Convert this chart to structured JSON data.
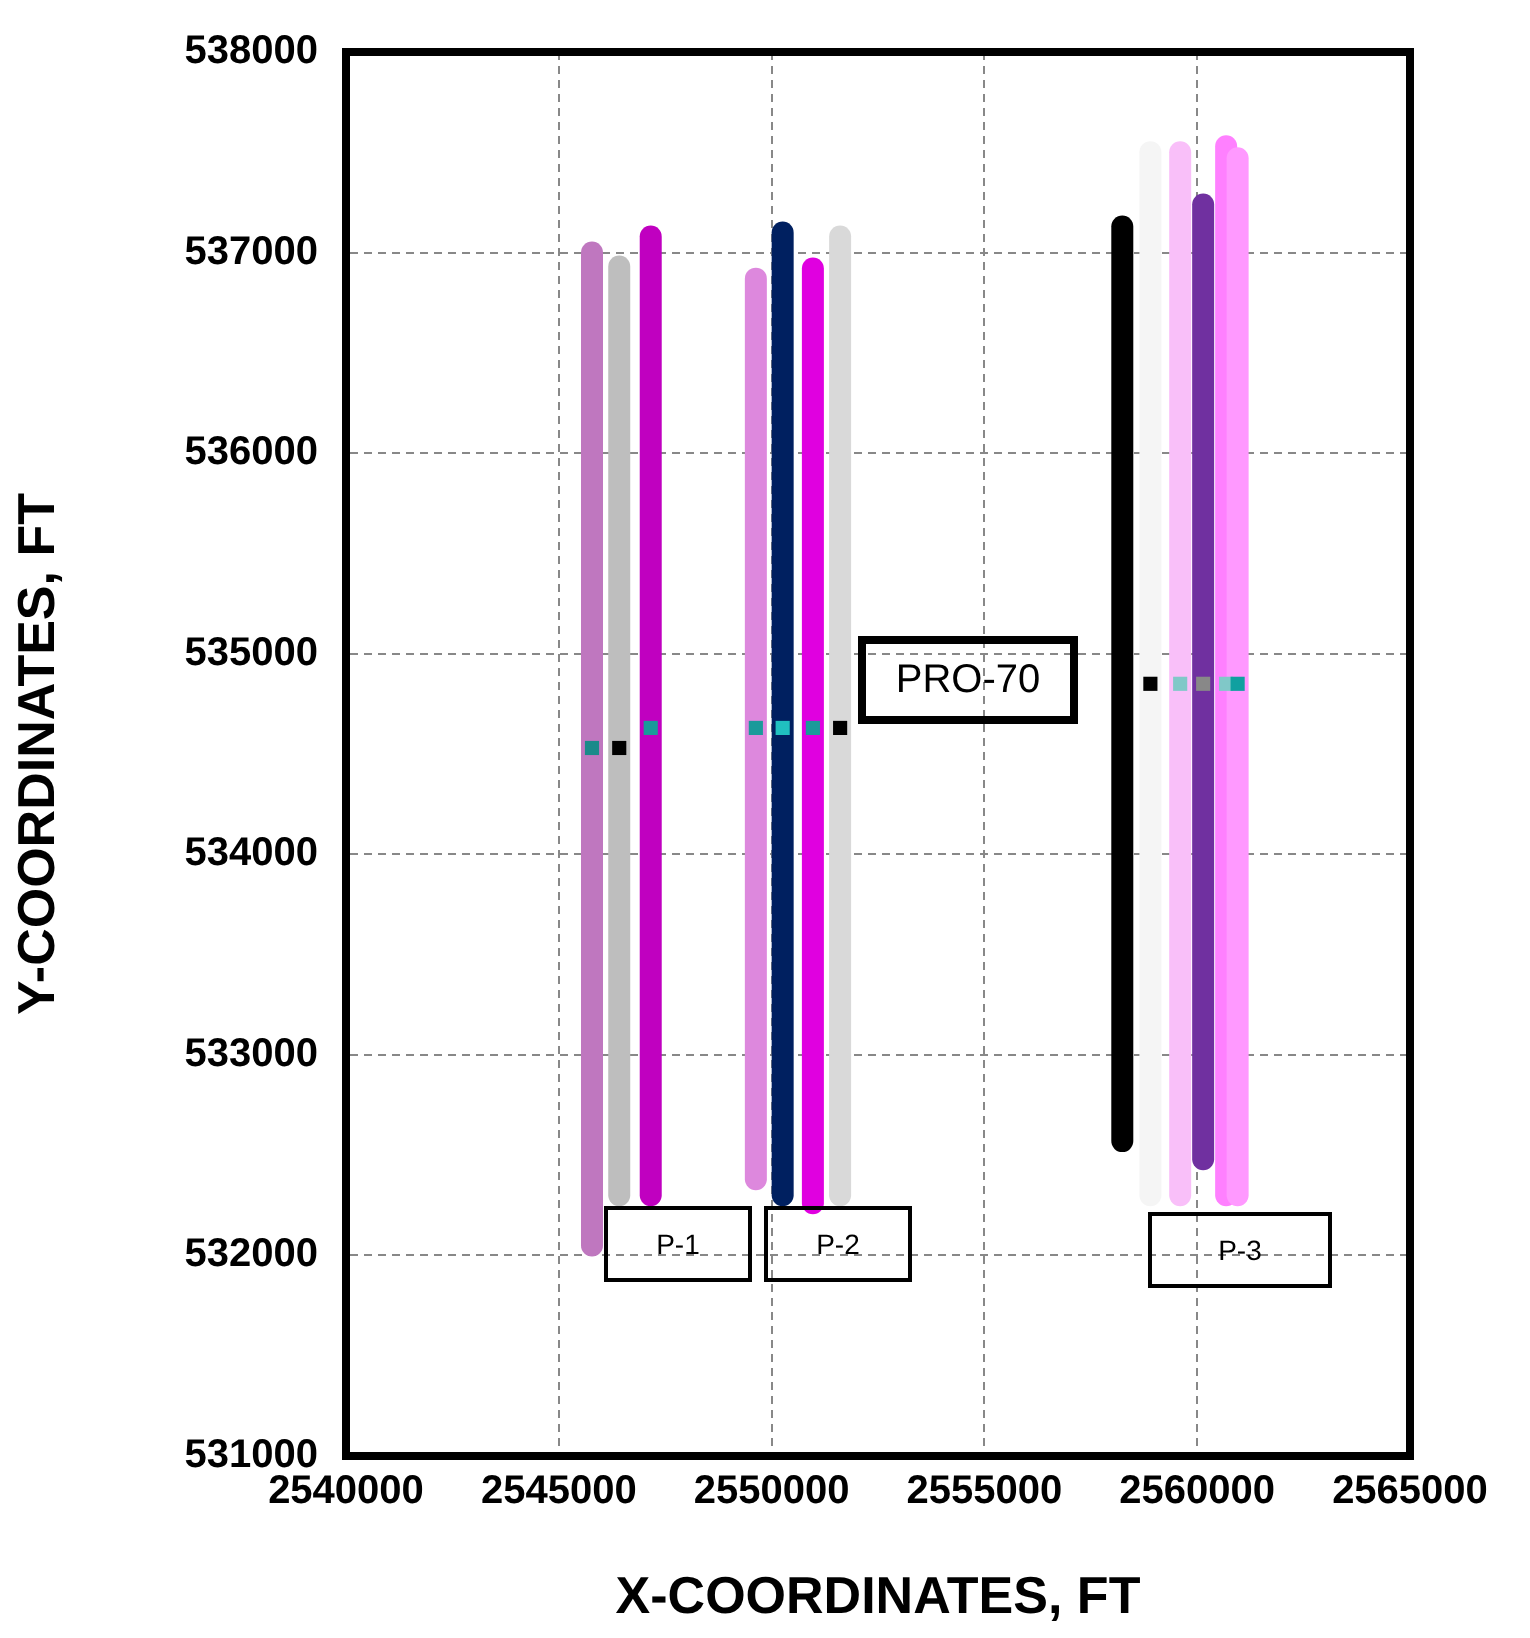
{
  "chart_data": {
    "type": "line",
    "xlabel": "X-COORDINATES, FT",
    "ylabel": "Y-COORDINATES, FT",
    "xlim": [
      2540000,
      2565000
    ],
    "xticks": [
      2540000,
      2545000,
      2550000,
      2555000,
      2560000,
      2565000
    ],
    "ylim": [
      531000,
      538000
    ],
    "yticks": [
      531000,
      532000,
      533000,
      534000,
      535000,
      536000,
      537000,
      538000
    ],
    "grid": true,
    "series": [
      {
        "color": "#bf77bf",
        "x": [
          2545780,
          2545780
        ],
        "values": [
          532050,
          537000
        ]
      },
      {
        "type": "line",
        "color": "#bebebe",
        "x": [
          2546420,
          2546420
        ],
        "values": [
          532300,
          536930
        ]
      },
      {
        "type": "line",
        "color": "#c000c0",
        "x": [
          2547160,
          2547160
        ],
        "values": [
          532300,
          537080
        ]
      },
      {
        "type": "line",
        "color": "#dd88dd",
        "x": [
          2549630,
          2549630
        ],
        "values": [
          532380,
          536870
        ]
      },
      {
        "type": "line",
        "color": "#002060",
        "x": [
          2550260,
          2550260
        ],
        "values": [
          532300,
          537100
        ]
      },
      {
        "type": "line",
        "color": "#e000e0",
        "x": [
          2550970,
          2550970
        ],
        "values": [
          532260,
          536920
        ]
      },
      {
        "type": "line",
        "color": "#d9d9d9",
        "x": [
          2551610,
          2551610
        ],
        "values": [
          532300,
          537080
        ]
      },
      {
        "type": "line",
        "color": "#000000",
        "x": [
          2558240,
          2558240
        ],
        "values": [
          532570,
          537130
        ]
      },
      {
        "type": "line",
        "color": "#f5f5f5",
        "x": [
          2558900,
          2558900
        ],
        "values": [
          532300,
          537500
        ]
      },
      {
        "type": "line",
        "color": "#f9bff9",
        "x": [
          2559600,
          2559600
        ],
        "values": [
          532300,
          537500
        ]
      },
      {
        "type": "line",
        "color": "#ff99ff",
        "x": [
          2560950,
          2560950
        ],
        "values": [
          532300,
          537470
        ]
      },
      {
        "type": "line",
        "color": "#ff80ff",
        "x": [
          2560680,
          2560680
        ],
        "values": [
          532300,
          537530
        ]
      },
      {
        "type": "line",
        "color": "#7030a0",
        "x": [
          2560140,
          2560140
        ],
        "values": [
          532480,
          537240
        ]
      },
      {
        "type": "scatter",
        "marker": "square",
        "x": [
          2545780,
          2546420,
          2547160,
          2549630,
          2550260,
          2550970,
          2551610,
          2558900,
          2559600,
          2560140,
          2560680,
          2560950
        ],
        "values": [
          534530,
          534530,
          534630,
          534630,
          534630,
          534630,
          534630,
          534850,
          534850,
          534850,
          534850,
          534850
        ],
        "colors": [
          "#1a8a8a",
          "#000000",
          "#1a9a9a",
          "#1a9a9a",
          "#20c0c0",
          "#1a9a9a",
          "#000000",
          "#000000",
          "#80c8c8",
          "#888888",
          "#80c8c8",
          "#10a0a0"
        ]
      }
    ],
    "annotations": [
      "P-1",
      "P-2",
      "P-3",
      "PRO-70"
    ]
  }
}
